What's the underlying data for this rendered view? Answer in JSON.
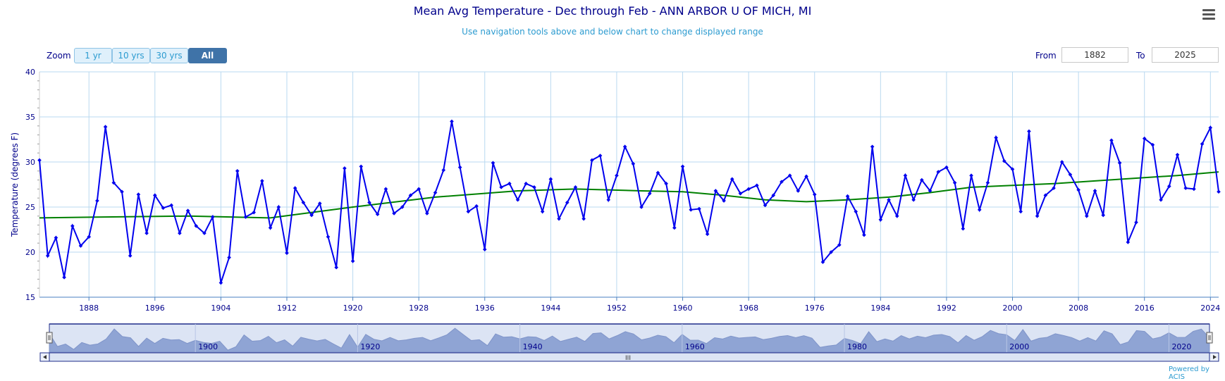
{
  "chart_data": {
    "type": "line",
    "title": "Mean Avg Temperature - Dec through Feb - ANN ARBOR U OF MICH, MI",
    "subtitle": "Use navigation tools above and below chart to change displayed range",
    "ylabel": "Temperature (degrees F)",
    "xlabel": "",
    "ylim": [
      15,
      40
    ],
    "yticks": [
      15,
      20,
      25,
      30,
      35,
      40
    ],
    "xlim": [
      1882,
      2025
    ],
    "xticks": [
      1888,
      1896,
      1904,
      1912,
      1920,
      1928,
      1936,
      1944,
      1952,
      1960,
      1968,
      1976,
      1984,
      1992,
      2000,
      2008,
      2016,
      2024
    ],
    "grid": true,
    "legend": "none",
    "colors": {
      "series": "#0000ee",
      "trend": "#008000",
      "navigator_fill": "#8fa4d4",
      "navigator_bg": "#dce4f4"
    },
    "series": [
      {
        "years": [
          1882,
          1883,
          1884,
          1885,
          1886,
          1887,
          1888,
          1889,
          1890,
          1891,
          1892,
          1893,
          1894,
          1895,
          1896,
          1897,
          1898,
          1899,
          1900,
          1901,
          1902,
          1903,
          1904,
          1905,
          1906,
          1907,
          1908,
          1909,
          1910,
          1911,
          1912,
          1913,
          1914,
          1915,
          1916,
          1917,
          1918,
          1919,
          1920,
          1921,
          1922,
          1923,
          1924,
          1925,
          1926,
          1927,
          1928,
          1929,
          1930,
          1931,
          1932,
          1933,
          1934,
          1935,
          1936,
          1937,
          1938,
          1939,
          1940,
          1941,
          1942,
          1943,
          1944,
          1945,
          1946,
          1947,
          1948,
          1949,
          1950,
          1951,
          1952,
          1953,
          1954,
          1955,
          1956,
          1957,
          1958,
          1959,
          1960,
          1961,
          1962,
          1963,
          1964,
          1965,
          1966,
          1967,
          1968,
          1969,
          1970,
          1971,
          1972,
          1973,
          1974,
          1975,
          1976,
          1977,
          1978,
          1979,
          1980,
          1981,
          1982,
          1983,
          1984,
          1985,
          1986,
          1987,
          1988,
          1989,
          1990,
          1991,
          1992,
          1993,
          1994,
          1995,
          1996,
          1997,
          1998,
          1999,
          2000,
          2001,
          2002,
          2003,
          2004,
          2005,
          2006,
          2007,
          2008,
          2009,
          2010,
          2011,
          2012,
          2013,
          2014,
          2015,
          2016,
          2017,
          2018,
          2019,
          2020,
          2021,
          2022,
          2023,
          2024,
          2025
        ],
        "values": [
          30.2,
          19.6,
          21.6,
          17.2,
          22.9,
          20.7,
          21.7,
          25.7,
          33.9,
          27.7,
          26.7,
          19.6,
          26.4,
          22.1,
          26.3,
          24.9,
          25.2,
          22.1,
          24.6,
          22.9,
          22.1,
          23.9,
          16.6,
          19.4,
          29.0,
          23.9,
          24.4,
          27.9,
          22.7,
          25.0,
          19.9,
          27.1,
          25.5,
          24.1,
          25.4,
          21.7,
          18.3,
          29.3,
          19.0,
          29.5,
          25.5,
          24.2,
          27.0,
          24.3,
          25.0,
          26.3,
          27.0,
          24.3,
          26.6,
          29.1,
          34.5,
          29.4,
          24.5,
          25.1,
          20.3,
          29.9,
          27.2,
          27.6,
          25.8,
          27.6,
          27.2,
          24.5,
          28.1,
          23.7,
          25.5,
          27.2,
          23.7,
          30.2,
          30.7,
          25.8,
          28.5,
          31.7,
          29.8,
          25.0,
          26.5,
          28.8,
          27.6,
          22.7,
          29.5,
          24.7,
          24.8,
          22.0,
          26.8,
          25.7,
          28.1,
          26.5,
          27.0,
          27.4,
          25.2,
          26.3,
          27.8,
          28.5,
          26.8,
          28.4,
          26.4,
          18.9,
          20.0,
          20.8,
          26.2,
          24.5,
          21.9,
          31.7,
          23.6,
          25.8,
          24.0,
          28.5,
          25.8,
          28.0,
          26.8,
          28.9,
          29.4,
          27.7,
          22.6,
          28.5,
          24.7,
          27.7,
          32.7,
          30.1,
          29.2,
          24.5,
          33.4,
          24.0,
          26.3,
          27.1,
          30.0,
          28.6,
          26.9,
          24.0,
          26.8,
          24.1,
          32.4,
          29.9,
          21.1,
          23.3,
          32.6,
          31.9,
          25.8,
          27.3,
          30.8,
          27.1,
          27.0,
          32.0,
          33.8,
          26.7
        ]
      },
      {
        "years": [
          1882,
          1890,
          1900,
          1910,
          1920,
          1930,
          1940,
          1947,
          1955,
          1960,
          1965,
          1970,
          1975,
          1980,
          1985,
          1990,
          1995,
          2000,
          2005,
          2010,
          2015,
          2020,
          2025
        ],
        "values": [
          23.8,
          23.9,
          24.0,
          23.8,
          25.0,
          26.1,
          26.8,
          27.0,
          26.8,
          26.7,
          26.3,
          25.8,
          25.6,
          25.8,
          26.1,
          26.6,
          27.2,
          27.4,
          27.6,
          27.9,
          28.2,
          28.5,
          28.9
        ]
      }
    ],
    "navigator": {
      "labels": [
        "1900",
        "1920",
        "1940",
        "1960",
        "1980",
        "2000",
        "2020"
      ]
    }
  },
  "controls": {
    "zoom_label": "Zoom",
    "zoom_buttons": [
      "1 yr",
      "10 yrs",
      "30 yrs",
      "All"
    ],
    "from_label": "From",
    "from_value": "1882",
    "to_label": "To",
    "to_value": "2025",
    "scroll_grip": "III"
  },
  "credit": "Powered by ACIS"
}
